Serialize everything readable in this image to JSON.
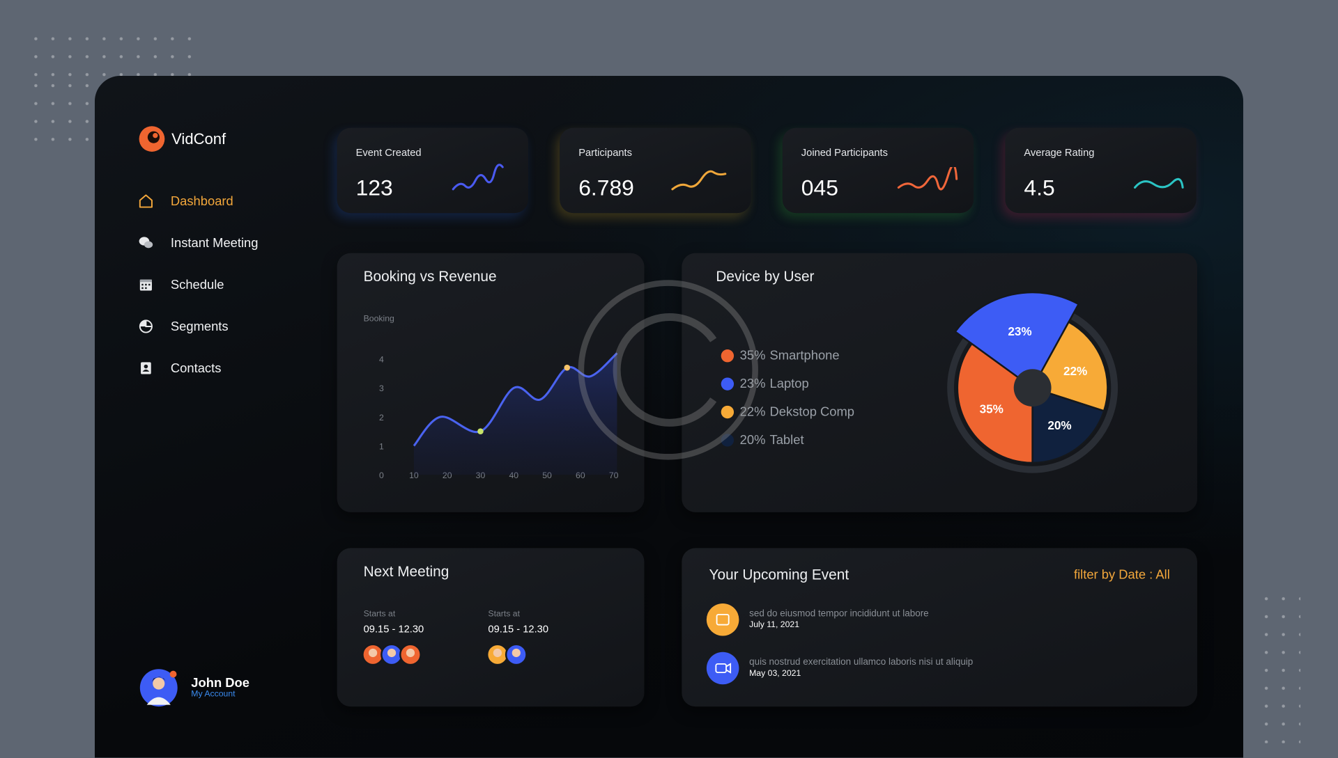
{
  "app": {
    "name": "VidConf"
  },
  "nav": [
    {
      "label": "Dashboard",
      "active": true
    },
    {
      "label": "Instant Meeting",
      "active": false
    },
    {
      "label": "Schedule",
      "active": false
    },
    {
      "label": "Segments",
      "active": false
    },
    {
      "label": "Contacts",
      "active": false
    }
  ],
  "user": {
    "name": "John Doe",
    "subtitle": "My Account"
  },
  "stats": [
    {
      "label": "Event Created",
      "value": "123"
    },
    {
      "label": "Participants",
      "value": "6.789"
    },
    {
      "label": "Joined Participants",
      "value": "045"
    },
    {
      "label": "Average Rating",
      "value": "4.5"
    }
  ],
  "booking_chart": {
    "type": "line",
    "title": "Booking vs Revenue",
    "y_label": "Booking",
    "x": [
      10,
      18,
      30,
      40,
      48,
      56,
      63,
      71
    ],
    "values": [
      1,
      2,
      1.5,
      3,
      2.6,
      3.7,
      3.4,
      4.2
    ],
    "highlight_points": [
      2,
      5
    ],
    "color": "#4a63f0",
    "xlim": [
      0,
      72
    ],
    "ylim": [
      0,
      4.3
    ],
    "xticks": [
      10,
      20,
      30,
      40,
      50,
      60,
      70
    ],
    "yticks": [
      0,
      1,
      2,
      3,
      4
    ],
    "grid": false
  },
  "device_chart": {
    "type": "pie",
    "title": "Device by User",
    "categories": [
      "Smartphone",
      "Laptop",
      "Dekstop Comp",
      "Tablet"
    ],
    "values": [
      35,
      23,
      22,
      20
    ],
    "value_labels": [
      "35%",
      "23%",
      "22%",
      "20%"
    ],
    "colors": [
      "#ef6530",
      "#3d5cf5",
      "#f7aa37",
      "#10213e"
    ]
  },
  "next_meeting": {
    "title": "Next Meeting",
    "meetings": [
      {
        "label": "Starts at",
        "time": "09.15 - 12.30"
      },
      {
        "label": "Starts at",
        "time": "09.15 - 12.30"
      }
    ]
  },
  "upcoming": {
    "title": "Your Upcoming Event",
    "filter": "filter by Date : All",
    "events": [
      {
        "text": "sed do eiusmod tempor incididunt ut labore",
        "date": "July 11, 2021"
      },
      {
        "text": "quis nostrud exercitation ullamco laboris nisi ut aliquip",
        "date": "May 03, 2021"
      }
    ]
  }
}
